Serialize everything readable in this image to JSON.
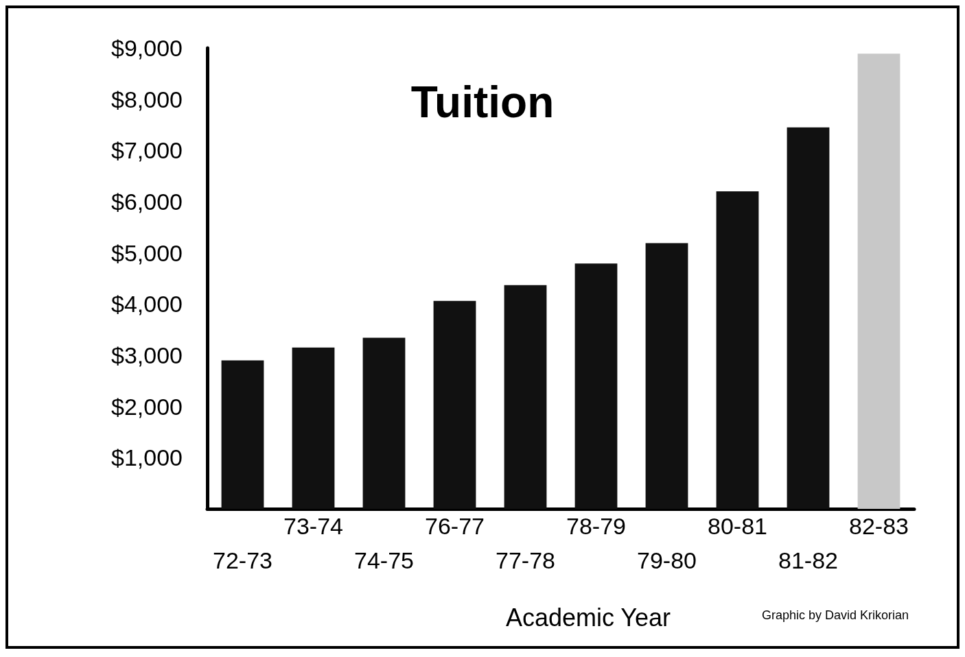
{
  "chart_data": {
    "type": "bar",
    "title": "Tuition",
    "xlabel": "Academic Year",
    "categories": [
      "72-73",
      "73-74",
      "74-75",
      "76-77",
      "77-78",
      "78-79",
      "79-80",
      "80-81",
      "81-82",
      "82-83"
    ],
    "values": [
      2900,
      3150,
      3340,
      4060,
      4370,
      4790,
      5190,
      6200,
      7450,
      8890
    ],
    "colors": [
      "#111111",
      "#111111",
      "#111111",
      "#111111",
      "#111111",
      "#111111",
      "#111111",
      "#111111",
      "#111111",
      "#c8c8c8"
    ],
    "ylim": [
      0,
      9000
    ],
    "yticks": [
      {
        "value": 1000,
        "label": "$1,000"
      },
      {
        "value": 2000,
        "label": "$2,000"
      },
      {
        "value": 3000,
        "label": "$3,000"
      },
      {
        "value": 4000,
        "label": "$4,000"
      },
      {
        "value": 5000,
        "label": "$5,000"
      },
      {
        "value": 6000,
        "label": "$6,000"
      },
      {
        "value": 7000,
        "label": "$7,000"
      },
      {
        "value": 8000,
        "label": "$8,000"
      },
      {
        "value": 9000,
        "label": "$9,000"
      }
    ],
    "grid": false,
    "annotations": [
      "Graphic by David Krikorian"
    ]
  }
}
